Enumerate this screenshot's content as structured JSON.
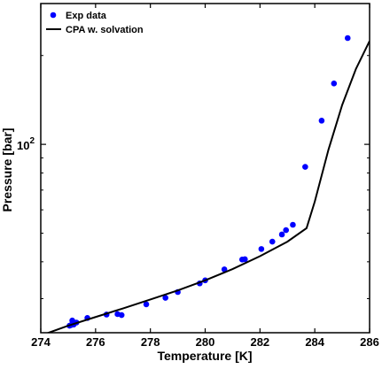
{
  "chart_data": {
    "type": "scatter",
    "xlabel": "Temperature [K]",
    "ylabel": "Pressure [bar]",
    "xlim": [
      274,
      286
    ],
    "ylim": [
      23,
      300
    ],
    "yscale": "log",
    "xticks": [
      "274",
      "276",
      "278",
      "280",
      "282",
      "284",
      "286"
    ],
    "yticks": [
      {
        "value": 100,
        "base": "10",
        "exp": "2"
      }
    ],
    "legend_position": "top-left",
    "grid": false,
    "series": [
      {
        "name": "Exp data",
        "kind": "markers",
        "color": "#0000ff",
        "x": [
          275.05,
          275.1,
          275.15,
          275.2,
          275.3,
          275.7,
          276.4,
          276.8,
          276.95,
          277.85,
          278.55,
          279.0,
          279.8,
          280.0,
          280.7,
          281.35,
          281.45,
          282.05,
          282.45,
          282.8,
          282.95,
          283.2,
          283.65,
          284.25,
          284.7,
          285.2
        ],
        "y": [
          24.3,
          24.4,
          25.3,
          24.5,
          24.9,
          25.8,
          26.5,
          26.6,
          26.4,
          28.7,
          30.2,
          31.6,
          33.8,
          34.6,
          37.7,
          40.7,
          40.8,
          44.2,
          46.8,
          49.5,
          51.2,
          53.4,
          83.9,
          120.3,
          160.8,
          229.2
        ]
      },
      {
        "name": "CPA w. solvation",
        "kind": "line",
        "color": "#000000",
        "x": [
          274.0,
          275.0,
          276.0,
          277.0,
          278.0,
          279.0,
          280.0,
          281.0,
          282.0,
          283.0,
          283.7,
          284.0,
          284.5,
          285.0,
          285.5,
          286.0
        ],
        "y": [
          22.5,
          24.3,
          26.0,
          27.8,
          29.8,
          32.0,
          34.6,
          37.8,
          41.8,
          46.8,
          52.0,
          64.0,
          96.0,
          136.0,
          180.0,
          224.0
        ]
      }
    ]
  }
}
